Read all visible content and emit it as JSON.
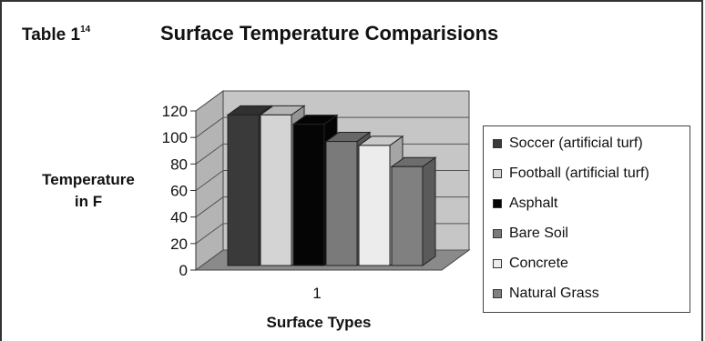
{
  "header": {
    "table_label": "Table 1",
    "table_sup": "14",
    "title": "Surface Temperature Comparisions"
  },
  "chart_data": {
    "type": "bar",
    "title": "Surface Temperature Comparisions",
    "xlabel": "Surface Types",
    "ylabel_line1": "Temperature",
    "ylabel_line2": "in F",
    "categories": [
      "1"
    ],
    "ylim": [
      0,
      120
    ],
    "yticks": [
      "0",
      "20",
      "40",
      "60",
      "80",
      "100",
      "120"
    ],
    "grid": true,
    "legend_position": "right",
    "series": [
      {
        "name": "Soccer (artificial turf)",
        "values": [
          117
        ],
        "color": "#3a3a3a"
      },
      {
        "name": "Football (artificial turf)",
        "values": [
          117
        ],
        "color": "#d4d4d4"
      },
      {
        "name": "Asphalt",
        "values": [
          110
        ],
        "color": "#050505"
      },
      {
        "name": "Bare Soil",
        "values": [
          97
        ],
        "color": "#7a7a7a"
      },
      {
        "name": "Concrete",
        "values": [
          94
        ],
        "color": "#ececec"
      },
      {
        "name": "Natural Grass",
        "values": [
          78
        ],
        "color": "#808080"
      }
    ]
  }
}
